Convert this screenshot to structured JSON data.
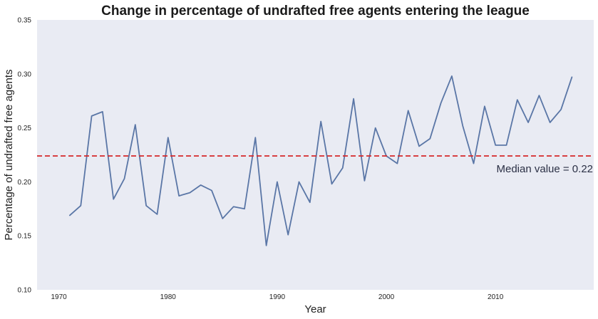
{
  "chart_data": {
    "type": "line",
    "title": "Change in percentage of undrafted free agents entering the league",
    "xlabel": "Year",
    "ylabel": "Percentage of undrafted free agents",
    "xlim": [
      1968,
      2019
    ],
    "ylim": [
      0.1,
      0.35
    ],
    "xticks": [
      1970,
      1980,
      1990,
      2000,
      2010
    ],
    "xtick_labels": [
      "1970",
      "1980",
      "1990",
      "2000",
      "2010"
    ],
    "yticks": [
      0.1,
      0.15,
      0.2,
      0.25,
      0.3,
      0.35
    ],
    "ytick_labels": [
      "0.10",
      "0.15",
      "0.20",
      "0.25",
      "0.30",
      "0.35"
    ],
    "grid": false,
    "series": [
      {
        "color": "#5a76a6",
        "x": [
          1971,
          1972,
          1973,
          1974,
          1975,
          1976,
          1977,
          1978,
          1979,
          1980,
          1981,
          1982,
          1983,
          1984,
          1985,
          1986,
          1987,
          1988,
          1989,
          1990,
          1991,
          1992,
          1993,
          1994,
          1995,
          1996,
          1997,
          1998,
          1999,
          2000,
          2001,
          2002,
          2003,
          2004,
          2005,
          2006,
          2007,
          2008,
          2009,
          2010,
          2011,
          2012,
          2013,
          2014,
          2015,
          2016,
          2017
        ],
        "values": [
          0.169,
          0.178,
          0.261,
          0.265,
          0.184,
          0.203,
          0.253,
          0.178,
          0.17,
          0.241,
          0.187,
          0.19,
          0.197,
          0.192,
          0.166,
          0.177,
          0.175,
          0.241,
          0.141,
          0.2,
          0.151,
          0.2,
          0.181,
          0.256,
          0.198,
          0.213,
          0.277,
          0.201,
          0.25,
          0.224,
          0.217,
          0.266,
          0.233,
          0.24,
          0.273,
          0.298,
          0.252,
          0.217,
          0.27,
          0.234,
          0.234,
          0.276,
          0.255,
          0.28,
          0.255,
          0.267,
          0.297
        ]
      }
    ],
    "reference_line": {
      "orientation": "horizontal",
      "value": 0.224,
      "style": "dashed",
      "color": "#d62728",
      "label": "Median value = 0.22"
    }
  },
  "colors": {
    "plot_background": "#e9ebf3",
    "line": "#5a76a6",
    "median_line": "#d62728"
  }
}
